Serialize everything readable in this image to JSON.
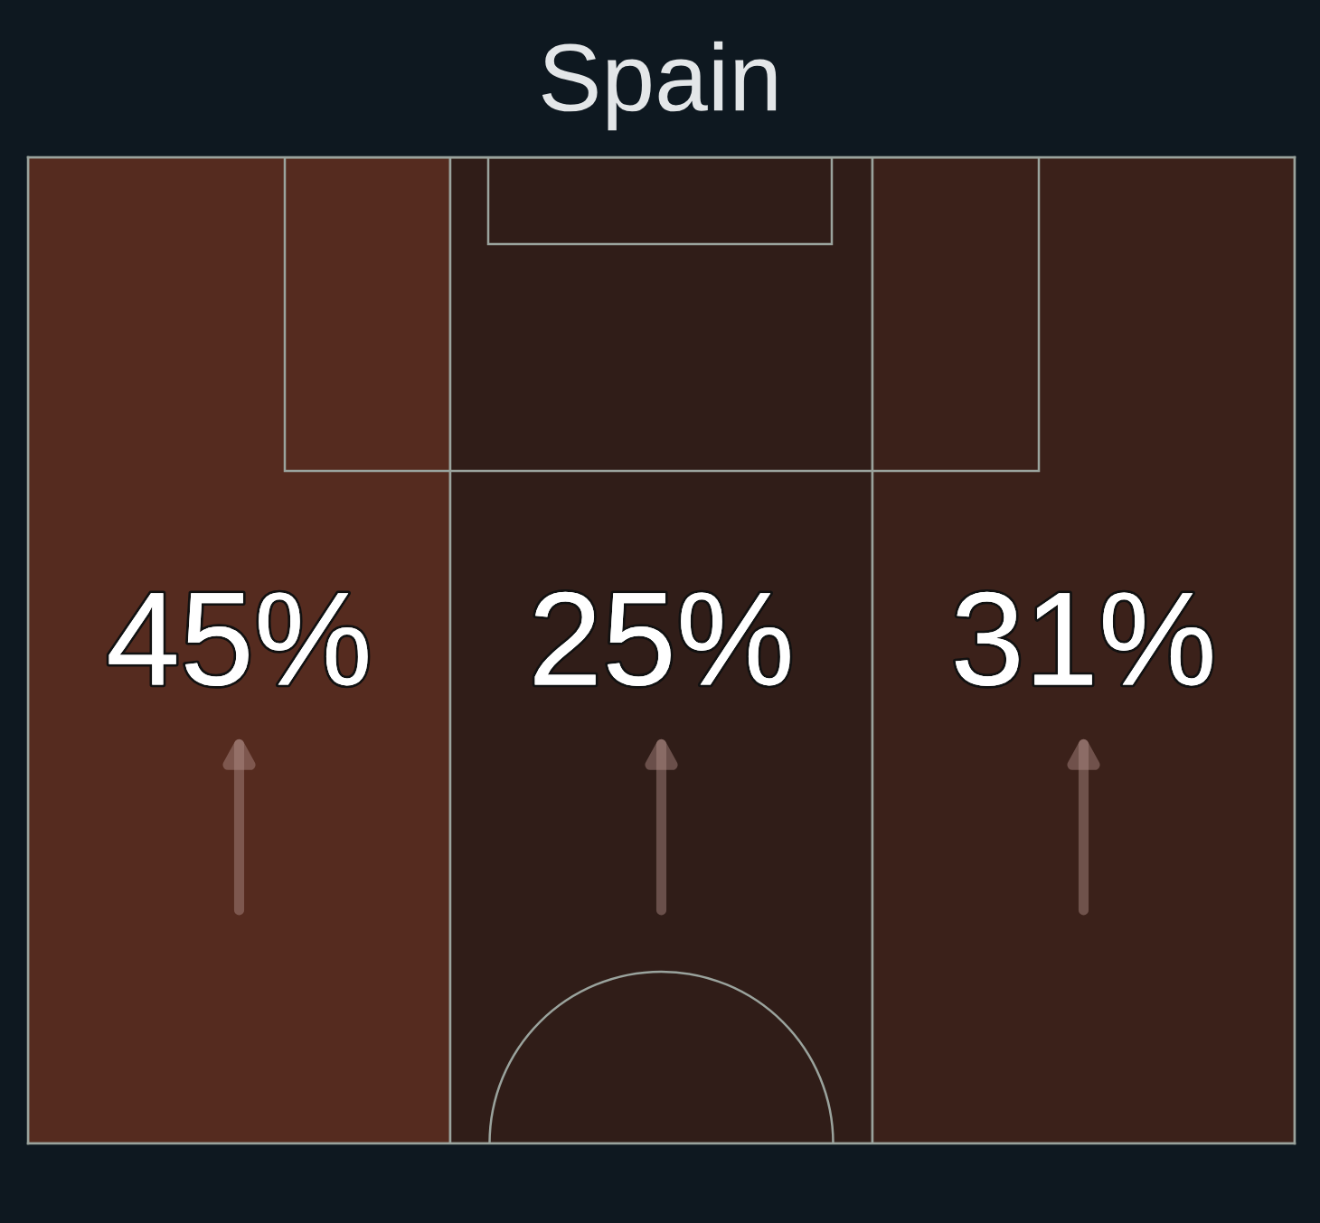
{
  "chart_data": {
    "type": "other",
    "title": "Spain",
    "categories": [
      null,
      null,
      null
    ],
    "values": [
      45,
      25,
      31
    ],
    "value_labels": [
      "45%",
      "25%",
      "31%"
    ]
  }
}
